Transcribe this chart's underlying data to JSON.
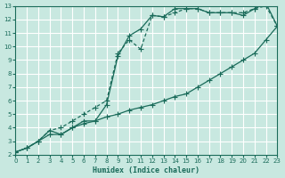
{
  "xlabel": "Humidex (Indice chaleur)",
  "ylabel": "",
  "bg_color": "#c8e8e0",
  "grid_color": "#ffffff",
  "line_color": "#1a6b5a",
  "xlim": [
    0,
    23
  ],
  "ylim": [
    2,
    13
  ],
  "xticks": [
    0,
    1,
    2,
    3,
    4,
    5,
    6,
    7,
    8,
    9,
    10,
    11,
    12,
    13,
    14,
    15,
    16,
    17,
    18,
    19,
    20,
    21,
    22,
    23
  ],
  "yticks": [
    2,
    3,
    4,
    5,
    6,
    7,
    8,
    9,
    10,
    11,
    12,
    13
  ],
  "line1_x": [
    0,
    1,
    2,
    3,
    4,
    5,
    6,
    7,
    8,
    9,
    10,
    11,
    12,
    13,
    14,
    15,
    16,
    17,
    18,
    19,
    20,
    21,
    22,
    23
  ],
  "line1_y": [
    2.2,
    2.5,
    3.0,
    3.5,
    3.5,
    4.0,
    4.3,
    4.5,
    4.8,
    5.0,
    5.3,
    5.5,
    5.7,
    6.0,
    6.3,
    6.5,
    7.0,
    7.5,
    8.0,
    8.5,
    9.0,
    9.5,
    10.5,
    11.5
  ],
  "line2_x": [
    0,
    1,
    2,
    3,
    4,
    5,
    6,
    7,
    8,
    9,
    10,
    11,
    12,
    13,
    14,
    15,
    16,
    17,
    18,
    19,
    20,
    21,
    22,
    23
  ],
  "line2_y": [
    2.2,
    2.5,
    3.0,
    3.8,
    4.0,
    4.5,
    5.0,
    5.5,
    6.0,
    9.5,
    10.5,
    9.8,
    12.3,
    12.2,
    12.5,
    12.8,
    12.8,
    12.5,
    12.5,
    12.5,
    12.5,
    12.8,
    13.0,
    11.5
  ],
  "line3_x": [
    0,
    1,
    2,
    3,
    4,
    5,
    6,
    7,
    8,
    9,
    10,
    11,
    12,
    13,
    14,
    15,
    16,
    17,
    18,
    19,
    20,
    21,
    22,
    23
  ],
  "line3_y": [
    2.2,
    2.5,
    3.0,
    3.8,
    3.5,
    4.0,
    4.5,
    4.5,
    5.7,
    9.3,
    10.8,
    11.3,
    12.3,
    12.2,
    12.8,
    12.8,
    12.8,
    12.5,
    12.5,
    12.5,
    12.3,
    12.8,
    13.2,
    11.5
  ]
}
